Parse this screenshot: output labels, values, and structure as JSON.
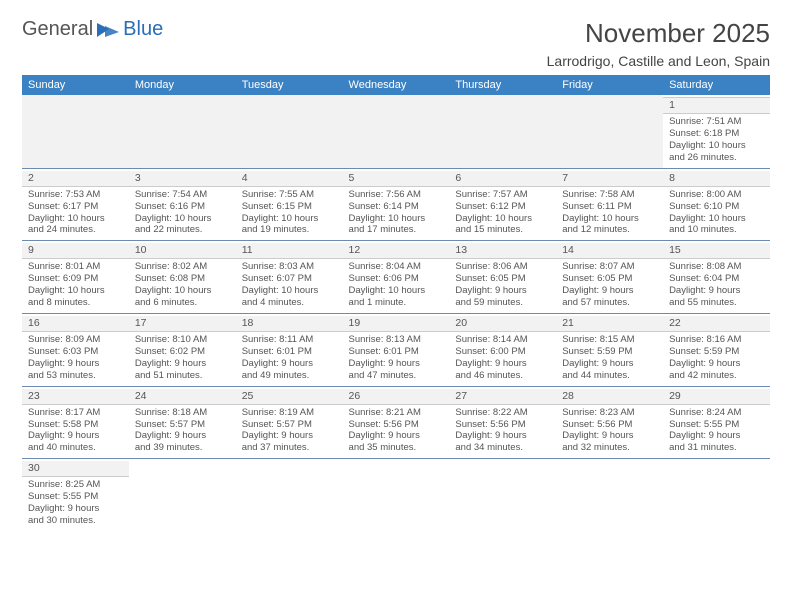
{
  "brand": {
    "word1": "General",
    "word2": "Blue"
  },
  "title": "November 2025",
  "location": "Larrodrigo, Castille and Leon, Spain",
  "colors": {
    "header_blue": "#3b82c4",
    "logo_blue": "#2a6db8",
    "row_divider": "#6b8bb0",
    "light_gray_bg": "#f2f2f2"
  },
  "day_headers": [
    "Sunday",
    "Monday",
    "Tuesday",
    "Wednesday",
    "Thursday",
    "Friday",
    "Saturday"
  ],
  "weeks": [
    [
      null,
      null,
      null,
      null,
      null,
      null,
      {
        "n": "1",
        "sr": "Sunrise: 7:51 AM",
        "ss": "Sunset: 6:18 PM",
        "d1": "Daylight: 10 hours",
        "d2": "and 26 minutes."
      }
    ],
    [
      {
        "n": "2",
        "sr": "Sunrise: 7:53 AM",
        "ss": "Sunset: 6:17 PM",
        "d1": "Daylight: 10 hours",
        "d2": "and 24 minutes."
      },
      {
        "n": "3",
        "sr": "Sunrise: 7:54 AM",
        "ss": "Sunset: 6:16 PM",
        "d1": "Daylight: 10 hours",
        "d2": "and 22 minutes."
      },
      {
        "n": "4",
        "sr": "Sunrise: 7:55 AM",
        "ss": "Sunset: 6:15 PM",
        "d1": "Daylight: 10 hours",
        "d2": "and 19 minutes."
      },
      {
        "n": "5",
        "sr": "Sunrise: 7:56 AM",
        "ss": "Sunset: 6:14 PM",
        "d1": "Daylight: 10 hours",
        "d2": "and 17 minutes."
      },
      {
        "n": "6",
        "sr": "Sunrise: 7:57 AM",
        "ss": "Sunset: 6:12 PM",
        "d1": "Daylight: 10 hours",
        "d2": "and 15 minutes."
      },
      {
        "n": "7",
        "sr": "Sunrise: 7:58 AM",
        "ss": "Sunset: 6:11 PM",
        "d1": "Daylight: 10 hours",
        "d2": "and 12 minutes."
      },
      {
        "n": "8",
        "sr": "Sunrise: 8:00 AM",
        "ss": "Sunset: 6:10 PM",
        "d1": "Daylight: 10 hours",
        "d2": "and 10 minutes."
      }
    ],
    [
      {
        "n": "9",
        "sr": "Sunrise: 8:01 AM",
        "ss": "Sunset: 6:09 PM",
        "d1": "Daylight: 10 hours",
        "d2": "and 8 minutes."
      },
      {
        "n": "10",
        "sr": "Sunrise: 8:02 AM",
        "ss": "Sunset: 6:08 PM",
        "d1": "Daylight: 10 hours",
        "d2": "and 6 minutes."
      },
      {
        "n": "11",
        "sr": "Sunrise: 8:03 AM",
        "ss": "Sunset: 6:07 PM",
        "d1": "Daylight: 10 hours",
        "d2": "and 4 minutes."
      },
      {
        "n": "12",
        "sr": "Sunrise: 8:04 AM",
        "ss": "Sunset: 6:06 PM",
        "d1": "Daylight: 10 hours",
        "d2": "and 1 minute."
      },
      {
        "n": "13",
        "sr": "Sunrise: 8:06 AM",
        "ss": "Sunset: 6:05 PM",
        "d1": "Daylight: 9 hours",
        "d2": "and 59 minutes."
      },
      {
        "n": "14",
        "sr": "Sunrise: 8:07 AM",
        "ss": "Sunset: 6:05 PM",
        "d1": "Daylight: 9 hours",
        "d2": "and 57 minutes."
      },
      {
        "n": "15",
        "sr": "Sunrise: 8:08 AM",
        "ss": "Sunset: 6:04 PM",
        "d1": "Daylight: 9 hours",
        "d2": "and 55 minutes."
      }
    ],
    [
      {
        "n": "16",
        "sr": "Sunrise: 8:09 AM",
        "ss": "Sunset: 6:03 PM",
        "d1": "Daylight: 9 hours",
        "d2": "and 53 minutes."
      },
      {
        "n": "17",
        "sr": "Sunrise: 8:10 AM",
        "ss": "Sunset: 6:02 PM",
        "d1": "Daylight: 9 hours",
        "d2": "and 51 minutes."
      },
      {
        "n": "18",
        "sr": "Sunrise: 8:11 AM",
        "ss": "Sunset: 6:01 PM",
        "d1": "Daylight: 9 hours",
        "d2": "and 49 minutes."
      },
      {
        "n": "19",
        "sr": "Sunrise: 8:13 AM",
        "ss": "Sunset: 6:01 PM",
        "d1": "Daylight: 9 hours",
        "d2": "and 47 minutes."
      },
      {
        "n": "20",
        "sr": "Sunrise: 8:14 AM",
        "ss": "Sunset: 6:00 PM",
        "d1": "Daylight: 9 hours",
        "d2": "and 46 minutes."
      },
      {
        "n": "21",
        "sr": "Sunrise: 8:15 AM",
        "ss": "Sunset: 5:59 PM",
        "d1": "Daylight: 9 hours",
        "d2": "and 44 minutes."
      },
      {
        "n": "22",
        "sr": "Sunrise: 8:16 AM",
        "ss": "Sunset: 5:59 PM",
        "d1": "Daylight: 9 hours",
        "d2": "and 42 minutes."
      }
    ],
    [
      {
        "n": "23",
        "sr": "Sunrise: 8:17 AM",
        "ss": "Sunset: 5:58 PM",
        "d1": "Daylight: 9 hours",
        "d2": "and 40 minutes."
      },
      {
        "n": "24",
        "sr": "Sunrise: 8:18 AM",
        "ss": "Sunset: 5:57 PM",
        "d1": "Daylight: 9 hours",
        "d2": "and 39 minutes."
      },
      {
        "n": "25",
        "sr": "Sunrise: 8:19 AM",
        "ss": "Sunset: 5:57 PM",
        "d1": "Daylight: 9 hours",
        "d2": "and 37 minutes."
      },
      {
        "n": "26",
        "sr": "Sunrise: 8:21 AM",
        "ss": "Sunset: 5:56 PM",
        "d1": "Daylight: 9 hours",
        "d2": "and 35 minutes."
      },
      {
        "n": "27",
        "sr": "Sunrise: 8:22 AM",
        "ss": "Sunset: 5:56 PM",
        "d1": "Daylight: 9 hours",
        "d2": "and 34 minutes."
      },
      {
        "n": "28",
        "sr": "Sunrise: 8:23 AM",
        "ss": "Sunset: 5:56 PM",
        "d1": "Daylight: 9 hours",
        "d2": "and 32 minutes."
      },
      {
        "n": "29",
        "sr": "Sunrise: 8:24 AM",
        "ss": "Sunset: 5:55 PM",
        "d1": "Daylight: 9 hours",
        "d2": "and 31 minutes."
      }
    ],
    [
      {
        "n": "30",
        "sr": "Sunrise: 8:25 AM",
        "ss": "Sunset: 5:55 PM",
        "d1": "Daylight: 9 hours",
        "d2": "and 30 minutes."
      },
      null,
      null,
      null,
      null,
      null,
      null
    ]
  ]
}
